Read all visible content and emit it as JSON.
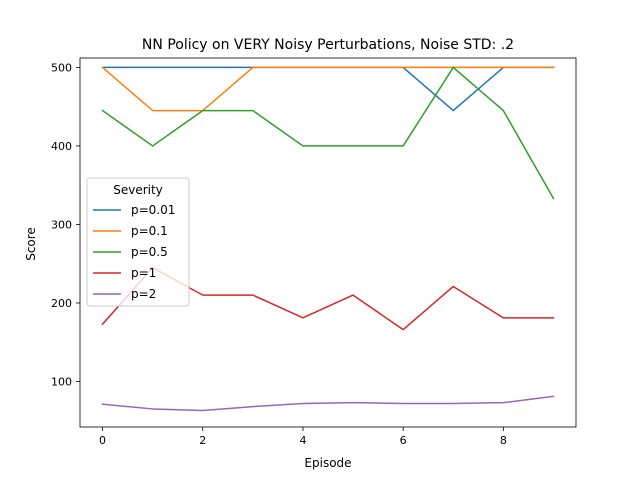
{
  "chart_data": {
    "type": "line",
    "title": "NN Policy on VERY Noisy Perturbations, Noise STD: .2",
    "xlabel": "Episode",
    "ylabel": "Score",
    "x": [
      0,
      1,
      2,
      3,
      4,
      5,
      6,
      7,
      8,
      9
    ],
    "xlim": [
      -0.45,
      9.45
    ],
    "ylim": [
      42,
      512
    ],
    "xticks": [
      0,
      2,
      4,
      6,
      8
    ],
    "xtick_labels": [
      "0",
      "2",
      "4",
      "6",
      "8"
    ],
    "yticks": [
      100,
      200,
      300,
      400,
      500
    ],
    "ytick_labels": [
      "100",
      "200",
      "300",
      "400",
      "500"
    ],
    "grid": false,
    "legend": {
      "title": "Severity",
      "placement": "center-left"
    },
    "series": [
      {
        "name": "p=0.01",
        "color": "#1f77b4",
        "values": [
          500,
          500,
          500,
          500,
          500,
          500,
          500,
          445,
          500,
          500
        ]
      },
      {
        "name": "p=0.1",
        "color": "#ff7f0e",
        "values": [
          500,
          445,
          445,
          500,
          500,
          500,
          500,
          500,
          500,
          500
        ]
      },
      {
        "name": "p=0.5",
        "color": "#2ca02c",
        "values": [
          445,
          400,
          445,
          445,
          400,
          400,
          400,
          500,
          445,
          333
        ]
      },
      {
        "name": "p=1",
        "color": "#d62728",
        "values": [
          173,
          245,
          210,
          210,
          181,
          210,
          166,
          221,
          181,
          181
        ]
      },
      {
        "name": "p=2",
        "color": "#9467bd",
        "values": [
          71,
          65,
          63,
          68,
          72,
          73,
          72,
          72,
          73,
          81
        ]
      }
    ]
  }
}
